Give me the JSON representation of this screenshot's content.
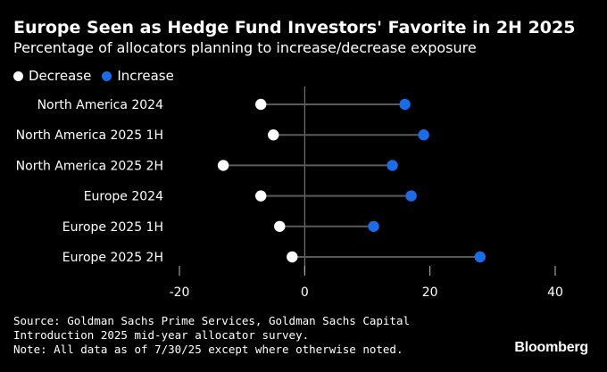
{
  "chart_data": {
    "type": "dumbbell",
    "title": "Europe Seen as Hedge Fund Investors' Favorite in 2H 2025",
    "subtitle": "Percentage of allocators planning to increase/decrease exposure",
    "legend": [
      {
        "name": "Decrease",
        "color": "#ffffff"
      },
      {
        "name": "Increase",
        "color": "#1a6de9"
      }
    ],
    "categories": [
      "North America 2024",
      "North America 2025 1H",
      "North America 2025 2H",
      "Europe 2024",
      "Europe 2025 1H",
      "Europe 2025 2H"
    ],
    "series": [
      {
        "name": "Decrease",
        "values": [
          -7,
          -5,
          -13,
          -7,
          -4,
          -2
        ]
      },
      {
        "name": "Increase",
        "values": [
          16,
          19,
          14,
          17,
          11,
          28
        ]
      }
    ],
    "xlim": [
      -20,
      40
    ],
    "xticks": [
      -20,
      0,
      20,
      40
    ],
    "xtick_labels": [
      "-20",
      "0",
      "20",
      "40"
    ],
    "xlabel": "",
    "ylabel": "",
    "legend_position": "top-left"
  },
  "colors": {
    "background": "#000000",
    "decrease": "#ffffff",
    "increase": "#1a6de9",
    "connector": "#5a5a5a",
    "zero_line": "#8a8a8a",
    "text": "#ffffff"
  },
  "footer": {
    "source_line1": "Source: Goldman Sachs Prime Services, Goldman Sachs Capital",
    "source_line2": "Introduction 2025 mid-year allocator survey.",
    "note": "Note: All data as of 7/30/25 except where otherwise noted.",
    "brand": "Bloomberg"
  }
}
